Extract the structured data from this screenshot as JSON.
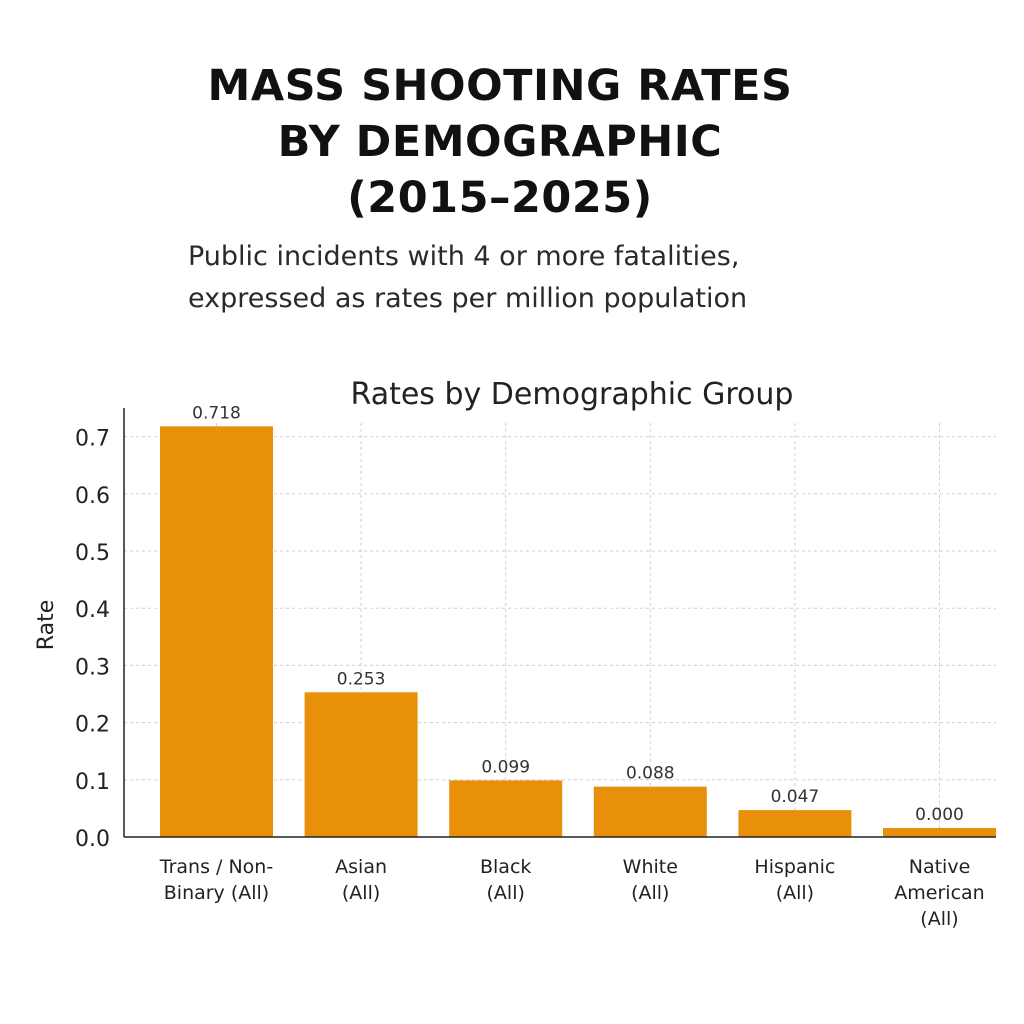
{
  "header": {
    "title_lines": [
      "MASS SHOOTING RATES",
      "BY DEMOGRAPHIC",
      "(2015–2025)"
    ],
    "subtitle_lines": [
      "Public incidents with 4 or more fatalities,",
      "expressed as rates per million population"
    ]
  },
  "chart_data": {
    "type": "bar",
    "title": "Rates by Demographic Group",
    "xlabel": "",
    "ylabel": "Rate",
    "categories": [
      [
        "Trans / Non-",
        "Binary  (All)"
      ],
      [
        "Asian",
        "(All)"
      ],
      [
        "Black",
        "(All)"
      ],
      [
        "White",
        "(All)"
      ],
      [
        "Hispanic",
        "(All)"
      ],
      [
        "Native",
        "American",
        "(All)"
      ]
    ],
    "values": [
      0.718,
      0.253,
      0.099,
      0.088,
      0.047,
      0.0
    ],
    "value_labels": [
      "0.718",
      "0.253",
      "0.099",
      "0.088",
      "0.047",
      "0.000"
    ],
    "yticks": [
      "0.0",
      "0.1",
      "0.2",
      "0.3",
      "0.4",
      "0.5",
      "0.6",
      "0.7"
    ],
    "ylim": [
      0,
      0.74
    ],
    "grid": true,
    "bar_color": "#E8900A",
    "grid_color": "#cfcfcf"
  }
}
